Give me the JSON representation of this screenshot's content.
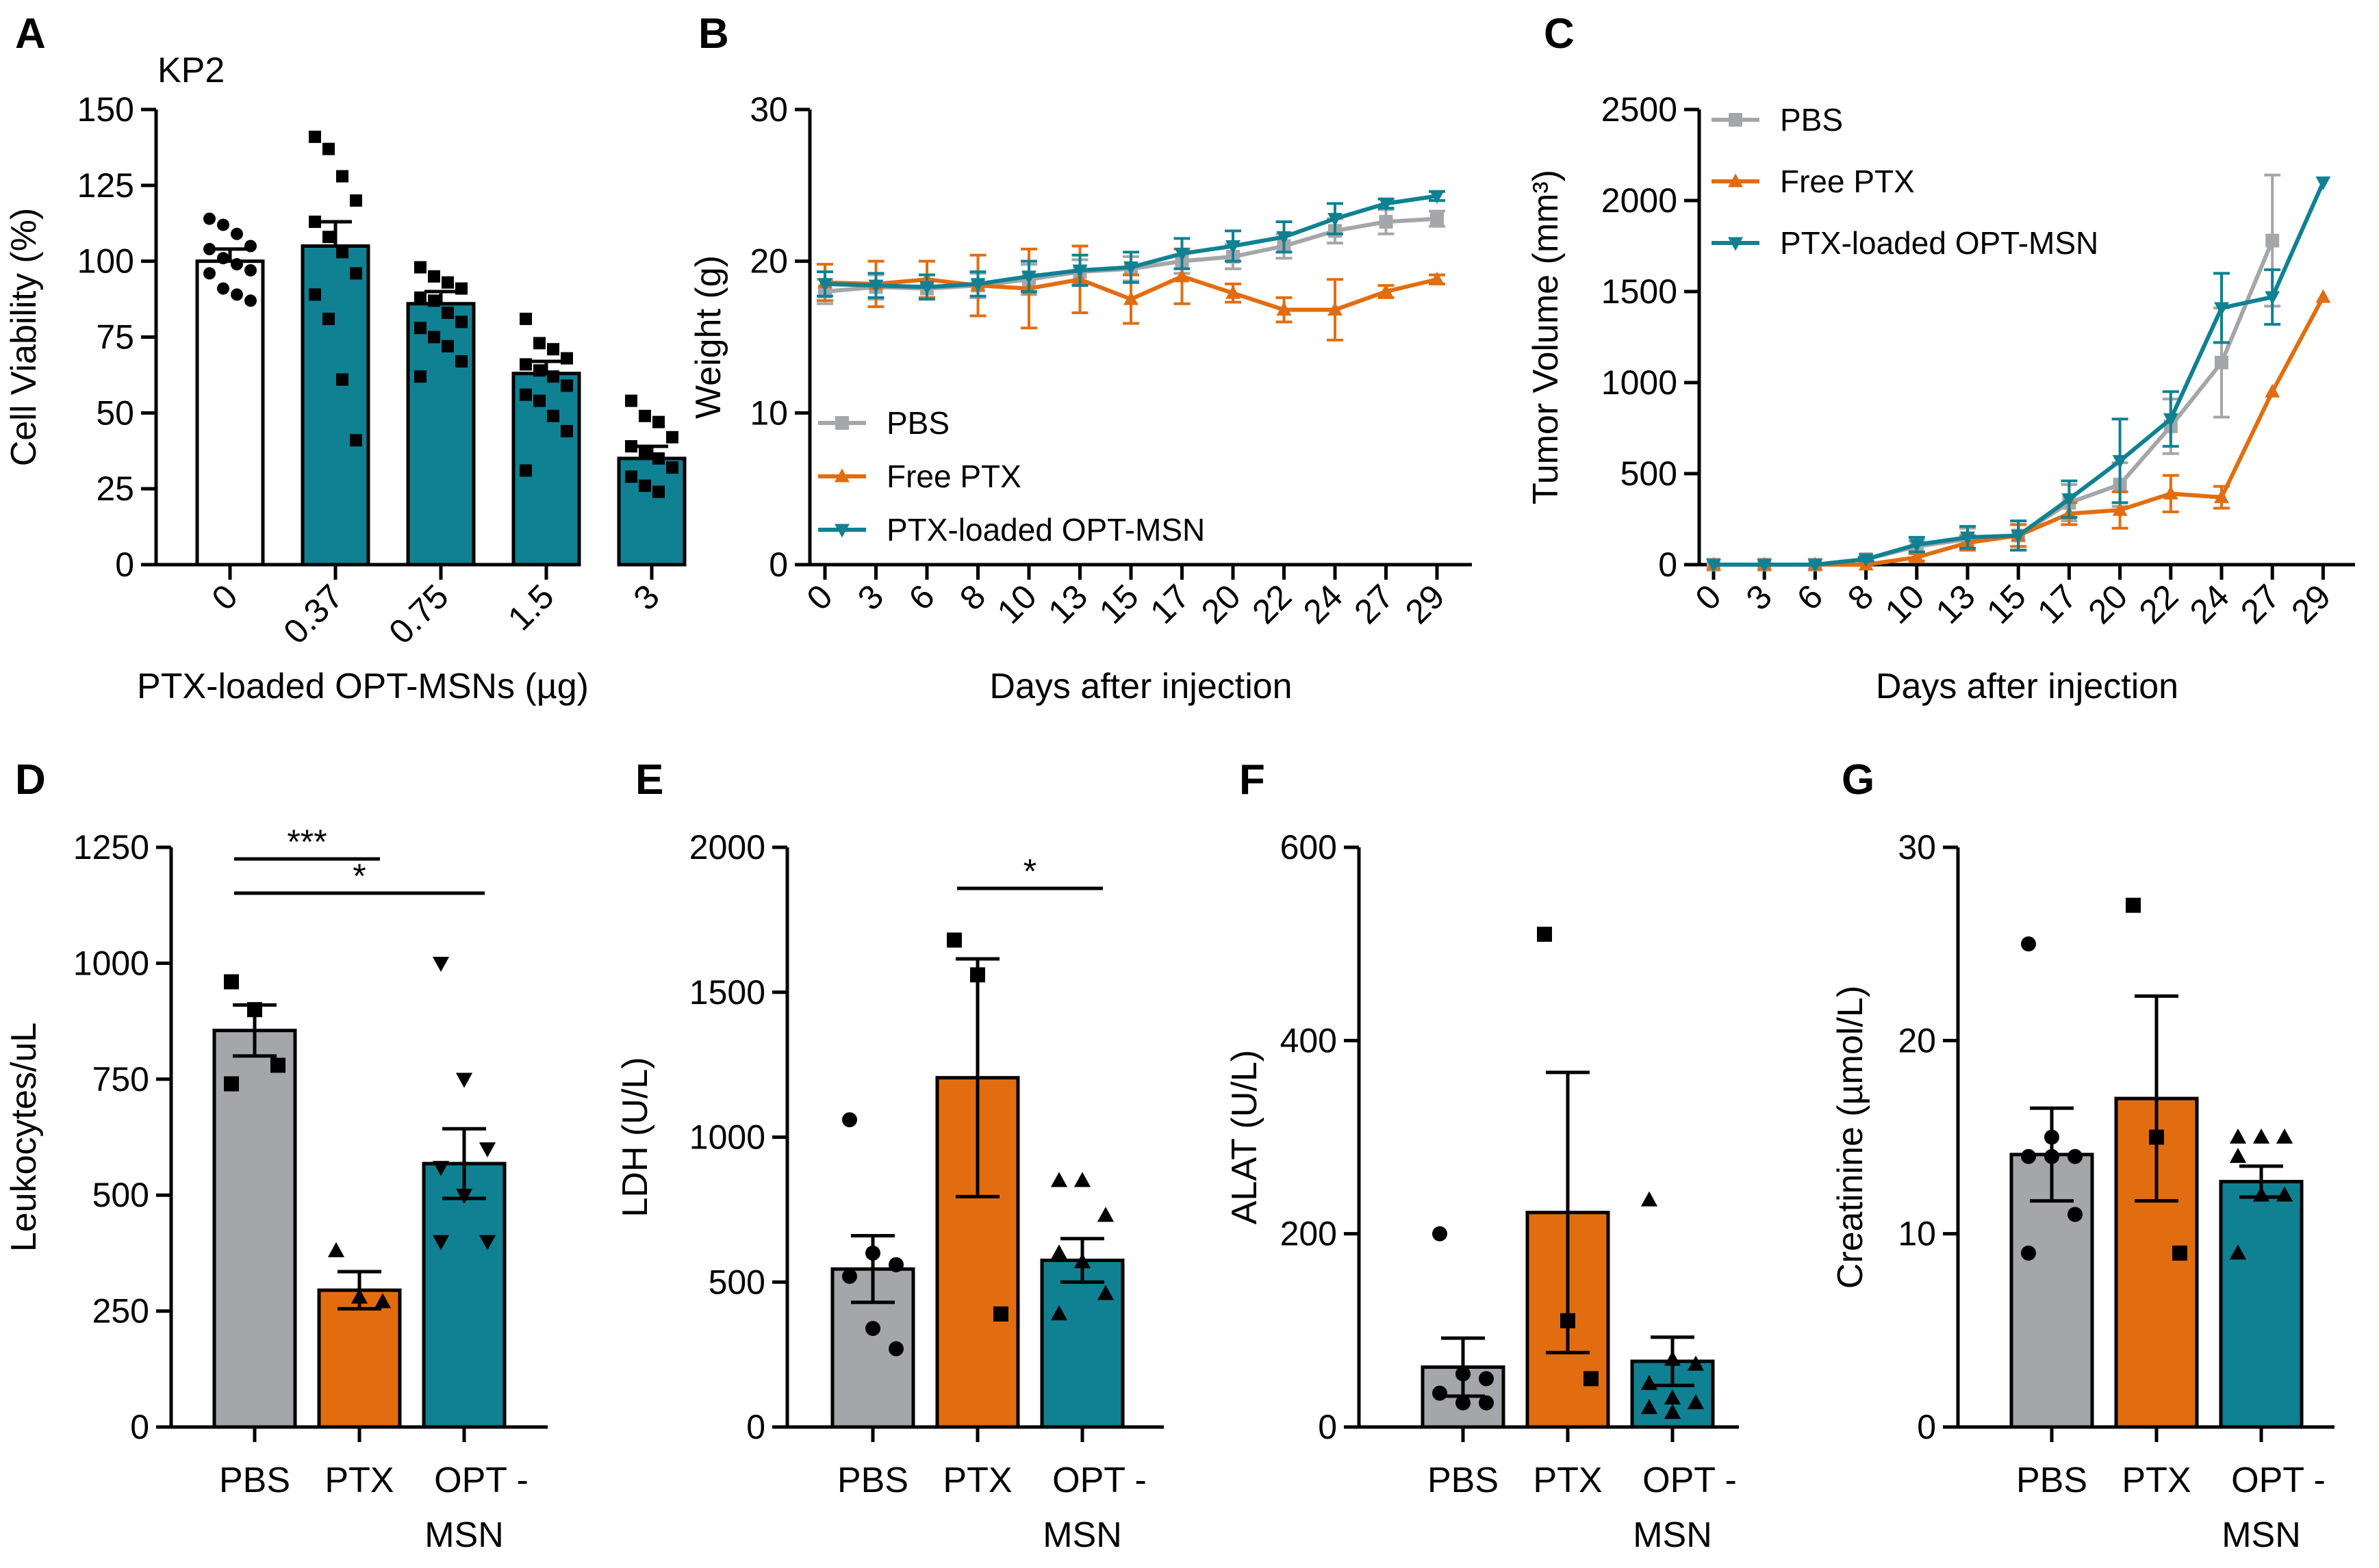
{
  "colors": {
    "pbs": "#a5a6a9",
    "ptx": "#e26d10",
    "opt": "#0f8192",
    "white": "#ffffff",
    "black": "#000000"
  },
  "panel_A": {
    "letter": "A",
    "cell_line": "KP2",
    "chart_data": {
      "type": "bar",
      "title": "KP2",
      "xlabel": "PTX-loaded OPT-MSNs (µg)",
      "ylabel": "Cell Viability (%)",
      "ylim": [
        0,
        150
      ],
      "yticks": [
        "0",
        "25",
        "50",
        "75",
        "100",
        "125",
        "150"
      ],
      "categories": [
        "0",
        "0.37",
        "0.75",
        "1.5",
        "3"
      ],
      "values": [
        100,
        105,
        86,
        63,
        35
      ],
      "errors": [
        4,
        8,
        4,
        4,
        4
      ],
      "bar_colors": [
        "white",
        "opt",
        "opt",
        "opt",
        "opt"
      ],
      "points": [
        [
          114,
          112,
          109,
          105,
          104,
          101,
          99,
          97,
          96,
          91,
          89,
          87
        ],
        [
          141,
          137,
          128,
          120,
          113,
          108,
          103,
          96,
          89,
          81,
          61,
          41
        ],
        [
          98,
          95,
          93,
          91,
          88,
          87,
          83,
          80,
          78,
          75,
          72,
          67,
          62
        ],
        [
          81,
          73,
          71,
          68,
          66,
          64,
          62,
          59,
          56,
          54,
          49,
          44,
          31
        ],
        [
          54,
          49,
          47,
          42,
          39,
          37,
          35,
          32,
          29,
          26,
          24
        ]
      ]
    }
  },
  "panel_B": {
    "letter": "B",
    "chart_data": {
      "type": "line",
      "xlabel": "Days after injection",
      "ylabel": "Weight (g)",
      "ylim": [
        0,
        30
      ],
      "yticks": [
        "0",
        "10",
        "20",
        "30"
      ],
      "x": [
        "0",
        "3",
        "6",
        "8",
        "10",
        "13",
        "15",
        "17",
        "20",
        "22",
        "24",
        "27",
        "29"
      ],
      "series": [
        {
          "name": "PBS",
          "color": "pbs",
          "marker": "square",
          "values": [
            18.0,
            18.3,
            18.2,
            18.4,
            18.8,
            19.3,
            19.5,
            20.0,
            20.3,
            21.0,
            22.0,
            22.6,
            22.8
          ],
          "errors": [
            0.8,
            0.8,
            0.6,
            0.8,
            1.0,
            0.8,
            0.8,
            0.8,
            0.8,
            0.8,
            0.8,
            0.8,
            0.5
          ]
        },
        {
          "name": "Free PTX",
          "color": "ptx",
          "marker": "triangle-up",
          "values": [
            18.6,
            18.5,
            18.8,
            18.4,
            18.2,
            18.8,
            17.5,
            19.0,
            17.9,
            16.8,
            16.8,
            18.0,
            18.8
          ],
          "errors": [
            1.2,
            1.5,
            1.2,
            2.0,
            2.6,
            2.2,
            1.6,
            1.8,
            0.6,
            0.8,
            2.0,
            0.4,
            0.3
          ]
        },
        {
          "name": "PTX-loaded OPT-MSN",
          "color": "opt",
          "marker": "triangle-down",
          "values": [
            18.5,
            18.4,
            18.3,
            18.5,
            19.0,
            19.4,
            19.6,
            20.5,
            21.0,
            21.6,
            22.8,
            23.8,
            24.3
          ],
          "errors": [
            0.8,
            0.8,
            0.8,
            0.8,
            1.0,
            1.0,
            1.0,
            1.0,
            1.0,
            1.0,
            1.0,
            0.3,
            0.3
          ]
        }
      ],
      "legend": [
        "PBS",
        "Free PTX",
        "PTX-loaded OPT-MSN"
      ]
    }
  },
  "panel_C": {
    "letter": "C",
    "chart_data": {
      "type": "line",
      "xlabel": "Days after injection",
      "ylabel": "Tumor Volume (mm³)",
      "ylim": [
        0,
        2500
      ],
      "yticks": [
        "0",
        "500",
        "1000",
        "1500",
        "2000",
        "2500"
      ],
      "x": [
        "0",
        "3",
        "6",
        "8",
        "10",
        "13",
        "15",
        "17",
        "20",
        "22",
        "24",
        "27",
        "29"
      ],
      "series": [
        {
          "name": "PBS",
          "color": "pbs",
          "marker": "square",
          "values": [
            0,
            0,
            0,
            30,
            100,
            140,
            160,
            340,
            440,
            760,
            1110,
            1780,
            null
          ],
          "errors": [
            0,
            0,
            0,
            10,
            30,
            60,
            80,
            100,
            120,
            150,
            300,
            360,
            0
          ]
        },
        {
          "name": "Free PTX",
          "color": "ptx",
          "marker": "triangle-up",
          "values": [
            0,
            0,
            0,
            0,
            40,
            120,
            160,
            280,
            300,
            390,
            370,
            950,
            1470
          ],
          "errors": [
            0,
            0,
            0,
            0,
            20,
            40,
            60,
            60,
            100,
            100,
            60,
            0,
            0
          ]
        },
        {
          "name": "PTX-loaded OPT-MSN",
          "color": "opt",
          "marker": "triangle-down",
          "values": [
            0,
            0,
            0,
            30,
            110,
            150,
            160,
            360,
            570,
            800,
            1410,
            1470,
            2100
          ],
          "errors": [
            0,
            0,
            0,
            10,
            40,
            60,
            80,
            100,
            230,
            150,
            190,
            150,
            0
          ]
        }
      ],
      "legend": [
        "PBS",
        "Free PTX",
        "PTX-loaded OPT-MSN"
      ]
    }
  },
  "panel_D": {
    "letter": "D",
    "chart_data": {
      "type": "bar",
      "ylabel": "Leukocytes/uL",
      "ylim": [
        0,
        1250
      ],
      "yticks": [
        "0",
        "250",
        "500",
        "750",
        "1000",
        "1250"
      ],
      "categories": [
        "PBS",
        "PTX",
        "OPT -\nMSN"
      ],
      "category_lines": [
        [
          "PBS"
        ],
        [
          "PTX"
        ],
        [
          "OPT -",
          "MSN"
        ]
      ],
      "values": [
        855,
        295,
        568
      ],
      "errors": [
        55,
        40,
        75
      ],
      "bar_colors": [
        "pbs",
        "ptx",
        "opt"
      ],
      "markers": [
        "square",
        "triangle-up",
        "triangle-down"
      ],
      "points": [
        [
          960,
          900,
          780,
          740
        ],
        [
          380,
          280,
          270
        ],
        [
          1000,
          750,
          600,
          560,
          500,
          400,
          400
        ]
      ],
      "significance": [
        {
          "from": 0,
          "to": 1,
          "label": "***"
        },
        {
          "from": 0,
          "to": 2,
          "label": "*"
        }
      ]
    }
  },
  "panel_E": {
    "letter": "E",
    "chart_data": {
      "type": "bar",
      "ylabel": "LDH (U/L)",
      "ylim": [
        0,
        2000
      ],
      "yticks": [
        "0",
        "500",
        "1000",
        "1500",
        "2000"
      ],
      "categories": [
        "PBS",
        "PTX",
        "OPT -\nMSN"
      ],
      "category_lines": [
        [
          "PBS"
        ],
        [
          "PTX"
        ],
        [
          "OPT -",
          "MSN"
        ]
      ],
      "values": [
        545,
        1205,
        575
      ],
      "errors": [
        115,
        410,
        75
      ],
      "bar_colors": [
        "pbs",
        "ptx",
        "opt"
      ],
      "markers": [
        "circle",
        "square",
        "triangle-up"
      ],
      "points": [
        [
          1060,
          600,
          560,
          520,
          340,
          270
        ],
        [
          1680,
          1560,
          390
        ],
        [
          850,
          850,
          730,
          600,
          570,
          460,
          390
        ]
      ],
      "significance": [
        {
          "from": 1,
          "to": 2,
          "label": "*"
        }
      ]
    }
  },
  "panel_F": {
    "letter": "F",
    "chart_data": {
      "type": "bar",
      "ylabel": "ALAT (U/L)",
      "ylim": [
        0,
        600
      ],
      "yticks": [
        "0",
        "200",
        "400",
        "600"
      ],
      "categories": [
        "PBS",
        "PTX",
        "OPT -\nMSN"
      ],
      "category_lines": [
        [
          "PBS"
        ],
        [
          "PTX"
        ],
        [
          "OPT -",
          "MSN"
        ]
      ],
      "values": [
        62,
        222,
        68
      ],
      "errors": [
        30,
        145,
        25
      ],
      "bar_colors": [
        "pbs",
        "ptx",
        "opt"
      ],
      "markers": [
        "circle",
        "square",
        "triangle-up"
      ],
      "points": [
        [
          200,
          55,
          50,
          35,
          25,
          25
        ],
        [
          510,
          110,
          50
        ],
        [
          235,
          70,
          65,
          45,
          30,
          25,
          20,
          15
        ]
      ],
      "significance": []
    }
  },
  "panel_G": {
    "letter": "G",
    "chart_data": {
      "type": "bar",
      "ylabel": "Creatinine (µmol/L)",
      "ylim": [
        0,
        30
      ],
      "yticks": [
        "0",
        "10",
        "20",
        "30"
      ],
      "categories": [
        "PBS",
        "PTX",
        "OPT -\nMSN"
      ],
      "category_lines": [
        [
          "PBS"
        ],
        [
          "PTX"
        ],
        [
          "OPT -",
          "MSN"
        ]
      ],
      "values": [
        14.1,
        17.0,
        12.7
      ],
      "errors": [
        2.4,
        5.3,
        0.8
      ],
      "bar_colors": [
        "pbs",
        "ptx",
        "opt"
      ],
      "markers": [
        "circle",
        "square",
        "triangle-up"
      ],
      "points": [
        [
          25,
          15,
          14,
          14,
          14,
          11,
          9
        ],
        [
          27,
          15,
          9
        ],
        [
          15,
          15,
          15,
          14,
          12,
          12,
          9
        ]
      ],
      "significance": []
    }
  }
}
